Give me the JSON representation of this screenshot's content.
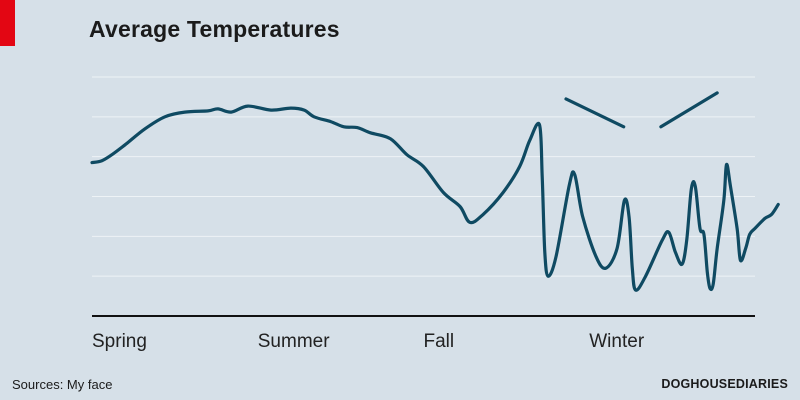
{
  "accent_color": "#e30613",
  "background_color": "#d6e0e8",
  "line_color": "#0f4a62",
  "source": "Sources: My face",
  "credit": "DOGHOUSEDIARIES",
  "chart_data": {
    "type": "line",
    "title": "Average Temperatures",
    "xlabel": "",
    "ylabel": "",
    "x_tick_labels": [
      {
        "label": "Spring",
        "x": 0
      },
      {
        "label": "Summer",
        "x": 25
      },
      {
        "label": "Fall",
        "x": 50
      },
      {
        "label": "Winter",
        "x": 75
      }
    ],
    "xlim": [
      0,
      100
    ],
    "ylim": [
      0,
      6
    ],
    "grid": true,
    "y_gridlines": [
      1,
      2,
      3,
      4,
      5,
      6
    ],
    "series": [
      {
        "values": [
          [
            0,
            3.85
          ],
          [
            1.5,
            3.9
          ],
          [
            3,
            4.05
          ],
          [
            5,
            4.3
          ],
          [
            8,
            4.7
          ],
          [
            11,
            5.0
          ],
          [
            14,
            5.12
          ],
          [
            17.5,
            5.15
          ],
          [
            19,
            5.2
          ],
          [
            21,
            5.12
          ],
          [
            23.5,
            5.27
          ],
          [
            27,
            5.17
          ],
          [
            30,
            5.22
          ],
          [
            32,
            5.17
          ],
          [
            33.5,
            5.0
          ],
          [
            36,
            4.88
          ],
          [
            38,
            4.75
          ],
          [
            40,
            4.73
          ],
          [
            42,
            4.6
          ],
          [
            45,
            4.45
          ],
          [
            47.5,
            4.05
          ],
          [
            50,
            3.75
          ],
          [
            53,
            3.1
          ],
          [
            55.5,
            2.75
          ],
          [
            57,
            2.35
          ],
          [
            59,
            2.55
          ],
          [
            62,
            3.1
          ],
          [
            64.5,
            3.75
          ],
          [
            66,
            4.4
          ],
          [
            67.5,
            4.8
          ],
          [
            67.9,
            3.5
          ],
          [
            68.3,
            1.6
          ],
          [
            68.8,
            1.0
          ],
          [
            70,
            1.5
          ],
          [
            72,
            3.3
          ],
          [
            72.8,
            3.55
          ],
          [
            74,
            2.5
          ],
          [
            76,
            1.5
          ],
          [
            77.5,
            1.2
          ],
          [
            79.2,
            1.7
          ],
          [
            80.3,
            2.9
          ],
          [
            81,
            2.5
          ],
          [
            81.5,
            1.2
          ],
          [
            82,
            0.65
          ],
          [
            83.5,
            1.0
          ],
          [
            86,
            1.9
          ],
          [
            87,
            2.1
          ],
          [
            88,
            1.6
          ],
          [
            89,
            1.3
          ],
          [
            89.7,
            1.9
          ],
          [
            90.4,
            3.2
          ],
          [
            91,
            3.25
          ],
          [
            91.7,
            2.2
          ],
          [
            92.3,
            2.05
          ],
          [
            92.8,
            1.1
          ],
          [
            93.2,
            0.7
          ],
          [
            93.7,
            0.8
          ],
          [
            94.3,
            1.7
          ],
          [
            95.3,
            2.9
          ],
          [
            95.7,
            3.8
          ],
          [
            96.3,
            3.25
          ],
          [
            97.3,
            2.2
          ],
          [
            97.8,
            1.4
          ],
          [
            98.6,
            1.7
          ],
          [
            99.2,
            2.05
          ],
          [
            100,
            2.2
          ],
          [
            101.5,
            2.45
          ],
          [
            102.5,
            2.55
          ],
          [
            103.5,
            2.8
          ]
        ]
      }
    ],
    "annotations": [
      {
        "type": "eyebrow",
        "points": [
          [
            71.5,
            5.45
          ],
          [
            80.2,
            4.75
          ]
        ]
      },
      {
        "type": "eyebrow",
        "points": [
          [
            85.8,
            4.75
          ],
          [
            94.3,
            5.6
          ]
        ]
      }
    ]
  }
}
